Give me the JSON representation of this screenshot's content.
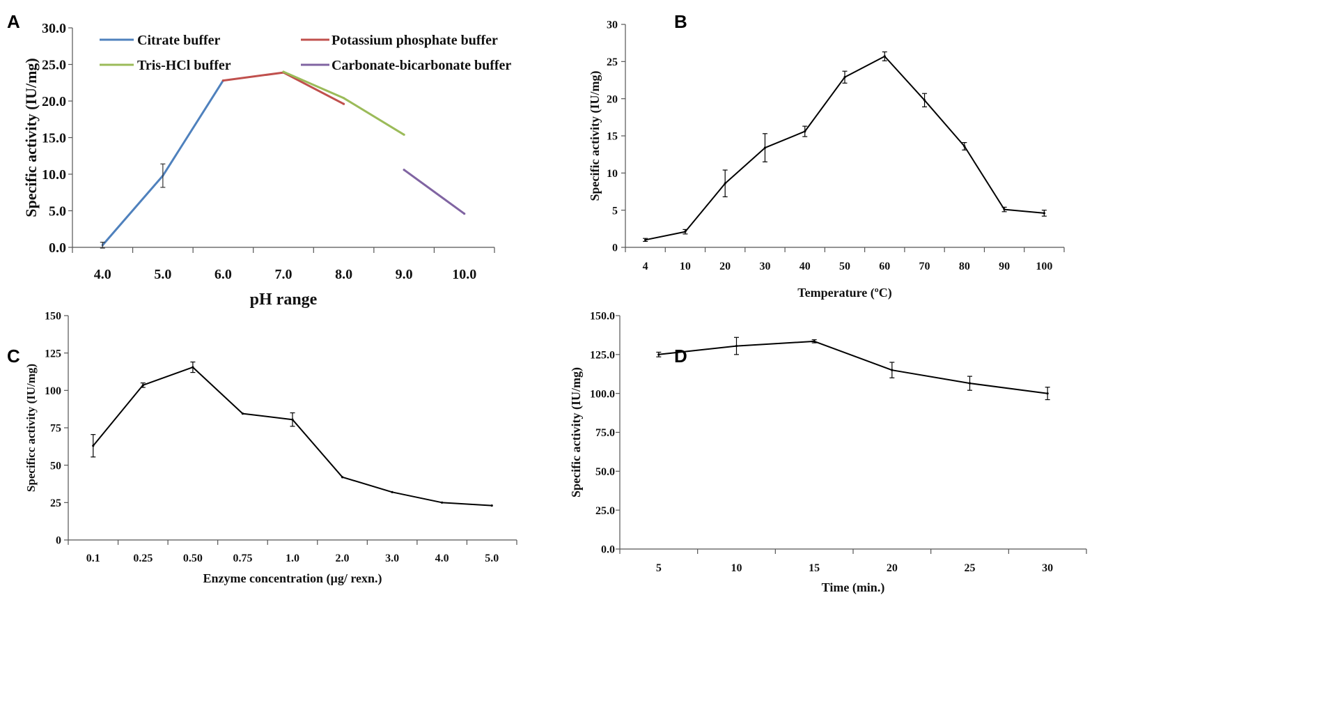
{
  "figure": {
    "panels": {
      "A": {
        "letter": "A"
      },
      "B": {
        "letter": "B"
      },
      "C": {
        "letter": "C"
      },
      "D": {
        "letter": "D"
      }
    }
  },
  "chart_data": [
    {
      "id": "A",
      "type": "line",
      "title": "",
      "xlabel": "pH range",
      "ylabel": "Specific activity (IU/mg)",
      "categories": [
        "4.0",
        "5.0",
        "6.0",
        "7.0",
        "8.0",
        "9.0",
        "10.0"
      ],
      "yticks": [
        "0.0",
        "5.0",
        "10.0",
        "15.0",
        "20.0",
        "25.0",
        "30.0"
      ],
      "ylim": [
        0,
        30
      ],
      "legend_position": "top",
      "series": [
        {
          "name": "Citrate buffer",
          "color": "#4f81bd",
          "x": [
            0,
            1,
            2
          ],
          "values": [
            0.3,
            9.8,
            22.8
          ],
          "errors": [
            0.4,
            1.6,
            0
          ]
        },
        {
          "name": "Potassium phosphate buffer",
          "color": "#c0504d",
          "x": [
            2,
            3,
            4
          ],
          "values": [
            22.8,
            23.9,
            19.6
          ],
          "errors": [
            0,
            0,
            0
          ]
        },
        {
          "name": "Tris-HCl buffer",
          "color": "#9bbb59",
          "x": [
            3,
            4,
            5
          ],
          "values": [
            24.0,
            20.4,
            15.4
          ],
          "errors": [
            0,
            0,
            0
          ]
        },
        {
          "name": "Carbonate-bicarbonate buffer",
          "color": "#8064a2",
          "x": [
            5,
            6
          ],
          "values": [
            10.6,
            4.6
          ],
          "errors": [
            0,
            0
          ]
        }
      ]
    },
    {
      "id": "B",
      "type": "line",
      "title": "",
      "xlabel": "Temperature (ºC)",
      "ylabel": "Specific activity (IU/mg)",
      "categories": [
        "4",
        "10",
        "20",
        "30",
        "40",
        "50",
        "60",
        "70",
        "80",
        "90",
        "100"
      ],
      "yticks": [
        "0",
        "5",
        "10",
        "15",
        "20",
        "25",
        "30"
      ],
      "ylim": [
        0,
        30
      ],
      "series": [
        {
          "name": "Activity",
          "color": "#000000",
          "values": [
            1.0,
            2.1,
            8.6,
            13.4,
            15.6,
            22.9,
            25.7,
            19.8,
            13.6,
            5.1,
            4.6
          ],
          "errors": [
            0.2,
            0.3,
            1.8,
            1.9,
            0.7,
            0.8,
            0.6,
            0.9,
            0.5,
            0.3,
            0.4
          ]
        }
      ]
    },
    {
      "id": "C",
      "type": "line",
      "title": "",
      "xlabel": "Enzyme concentration (µg/ rexn.)",
      "ylabel": "Specificc activity (IU/mg)",
      "categories": [
        "0.1",
        "0.25",
        "0.50",
        "0.75",
        "1.0",
        "2.0",
        "3.0",
        "4.0",
        "5.0"
      ],
      "yticks": [
        "0",
        "25",
        "50",
        "75",
        "100",
        "125",
        "150"
      ],
      "ylim": [
        0,
        150
      ],
      "series": [
        {
          "name": "Activity",
          "color": "#000000",
          "values": [
            63,
            103.5,
            115.5,
            84.5,
            80.5,
            42,
            32,
            25,
            23
          ],
          "errors": [
            7.5,
            1.5,
            3.5,
            0,
            4.5,
            0,
            0,
            0,
            0
          ]
        }
      ]
    },
    {
      "id": "D",
      "type": "line",
      "title": "",
      "xlabel": "Time (min.)",
      "ylabel": "Specific activity (IU/mg)",
      "categories": [
        "5",
        "10",
        "15",
        "20",
        "25",
        "30"
      ],
      "yticks": [
        "0.0",
        "25.0",
        "50.0",
        "75.0",
        "100.0",
        "125.0",
        "150.0"
      ],
      "ylim": [
        0,
        150
      ],
      "series": [
        {
          "name": "Activity",
          "color": "#000000",
          "values": [
            125,
            130.5,
            133.5,
            115,
            106.5,
            100
          ],
          "errors": [
            1.5,
            5.5,
            1,
            5,
            4.5,
            4
          ]
        }
      ]
    }
  ]
}
